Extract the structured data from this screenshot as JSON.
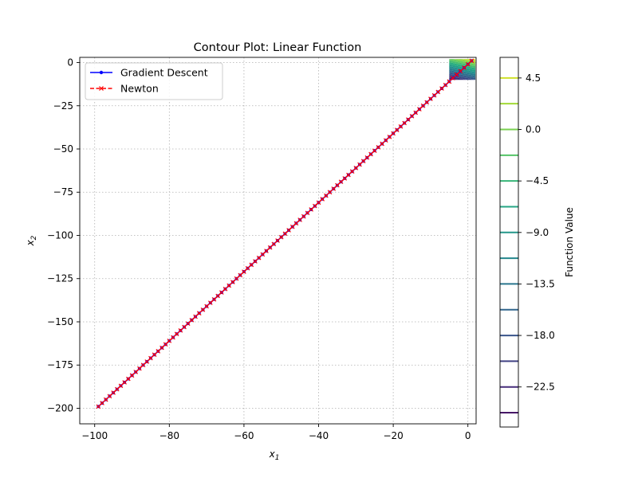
{
  "chart_data": {
    "type": "line",
    "title": "Contour Plot: Linear Function",
    "xlabel": "x",
    "xlabel_sub": "1",
    "ylabel": "x",
    "ylabel_sub": "2",
    "xlim": [
      -104,
      2.2
    ],
    "ylim": [
      -209,
      3
    ],
    "xticks": [
      -100,
      -80,
      -60,
      -40,
      -20,
      0
    ],
    "xtick_labels": [
      "−100",
      "−80",
      "−60",
      "−40",
      "−20",
      "0"
    ],
    "yticks": [
      0,
      -25,
      -50,
      -75,
      -100,
      -125,
      -150,
      -175,
      -200
    ],
    "ytick_labels": [
      "0",
      "−25",
      "−50",
      "−75",
      "−100",
      "−125",
      "−150",
      "−175",
      "−200"
    ],
    "grid": true,
    "legend_placement": "top-left",
    "series": [
      {
        "name": "Gradient Descent",
        "color": "#0000ff",
        "marker": "dot",
        "linestyle": "solid",
        "start": [
          1,
          1
        ],
        "end": [
          -99,
          -199
        ],
        "num_points": 101
      },
      {
        "name": "Newton",
        "color": "#ff0000",
        "marker": "x",
        "linestyle": "dashed",
        "start": [
          1,
          1
        ],
        "end": [
          -99,
          -199
        ],
        "num_points": 101
      }
    ],
    "contour": {
      "x_range": [
        -5,
        2
      ],
      "y_range": [
        -10,
        2
      ],
      "function": "x1 + 2*x2",
      "colormap": "viridis",
      "levels": [
        -27,
        -24.75,
        -22.5,
        -20.25,
        -18,
        -15.75,
        -13.5,
        -11.25,
        -9,
        -6.75,
        -4.5,
        -2.25,
        0,
        2.25,
        4.5,
        6.75
      ]
    },
    "colorbar": {
      "label": "Function Value",
      "range": [
        -26,
        6.3
      ],
      "ticks": [
        4.5,
        0.0,
        -4.5,
        -9.0,
        -13.5,
        -18.0,
        -22.5
      ],
      "tick_labels": [
        "4.5",
        "0.0",
        "−4.5",
        "−9.0",
        "−13.5",
        "−18.0",
        "−22.5"
      ],
      "levels": [
        -27,
        -24.75,
        -22.5,
        -20.25,
        -18,
        -15.75,
        -13.5,
        -11.25,
        -9,
        -6.75,
        -4.5,
        -2.25,
        0,
        2.25,
        4.5,
        6.75
      ]
    }
  }
}
